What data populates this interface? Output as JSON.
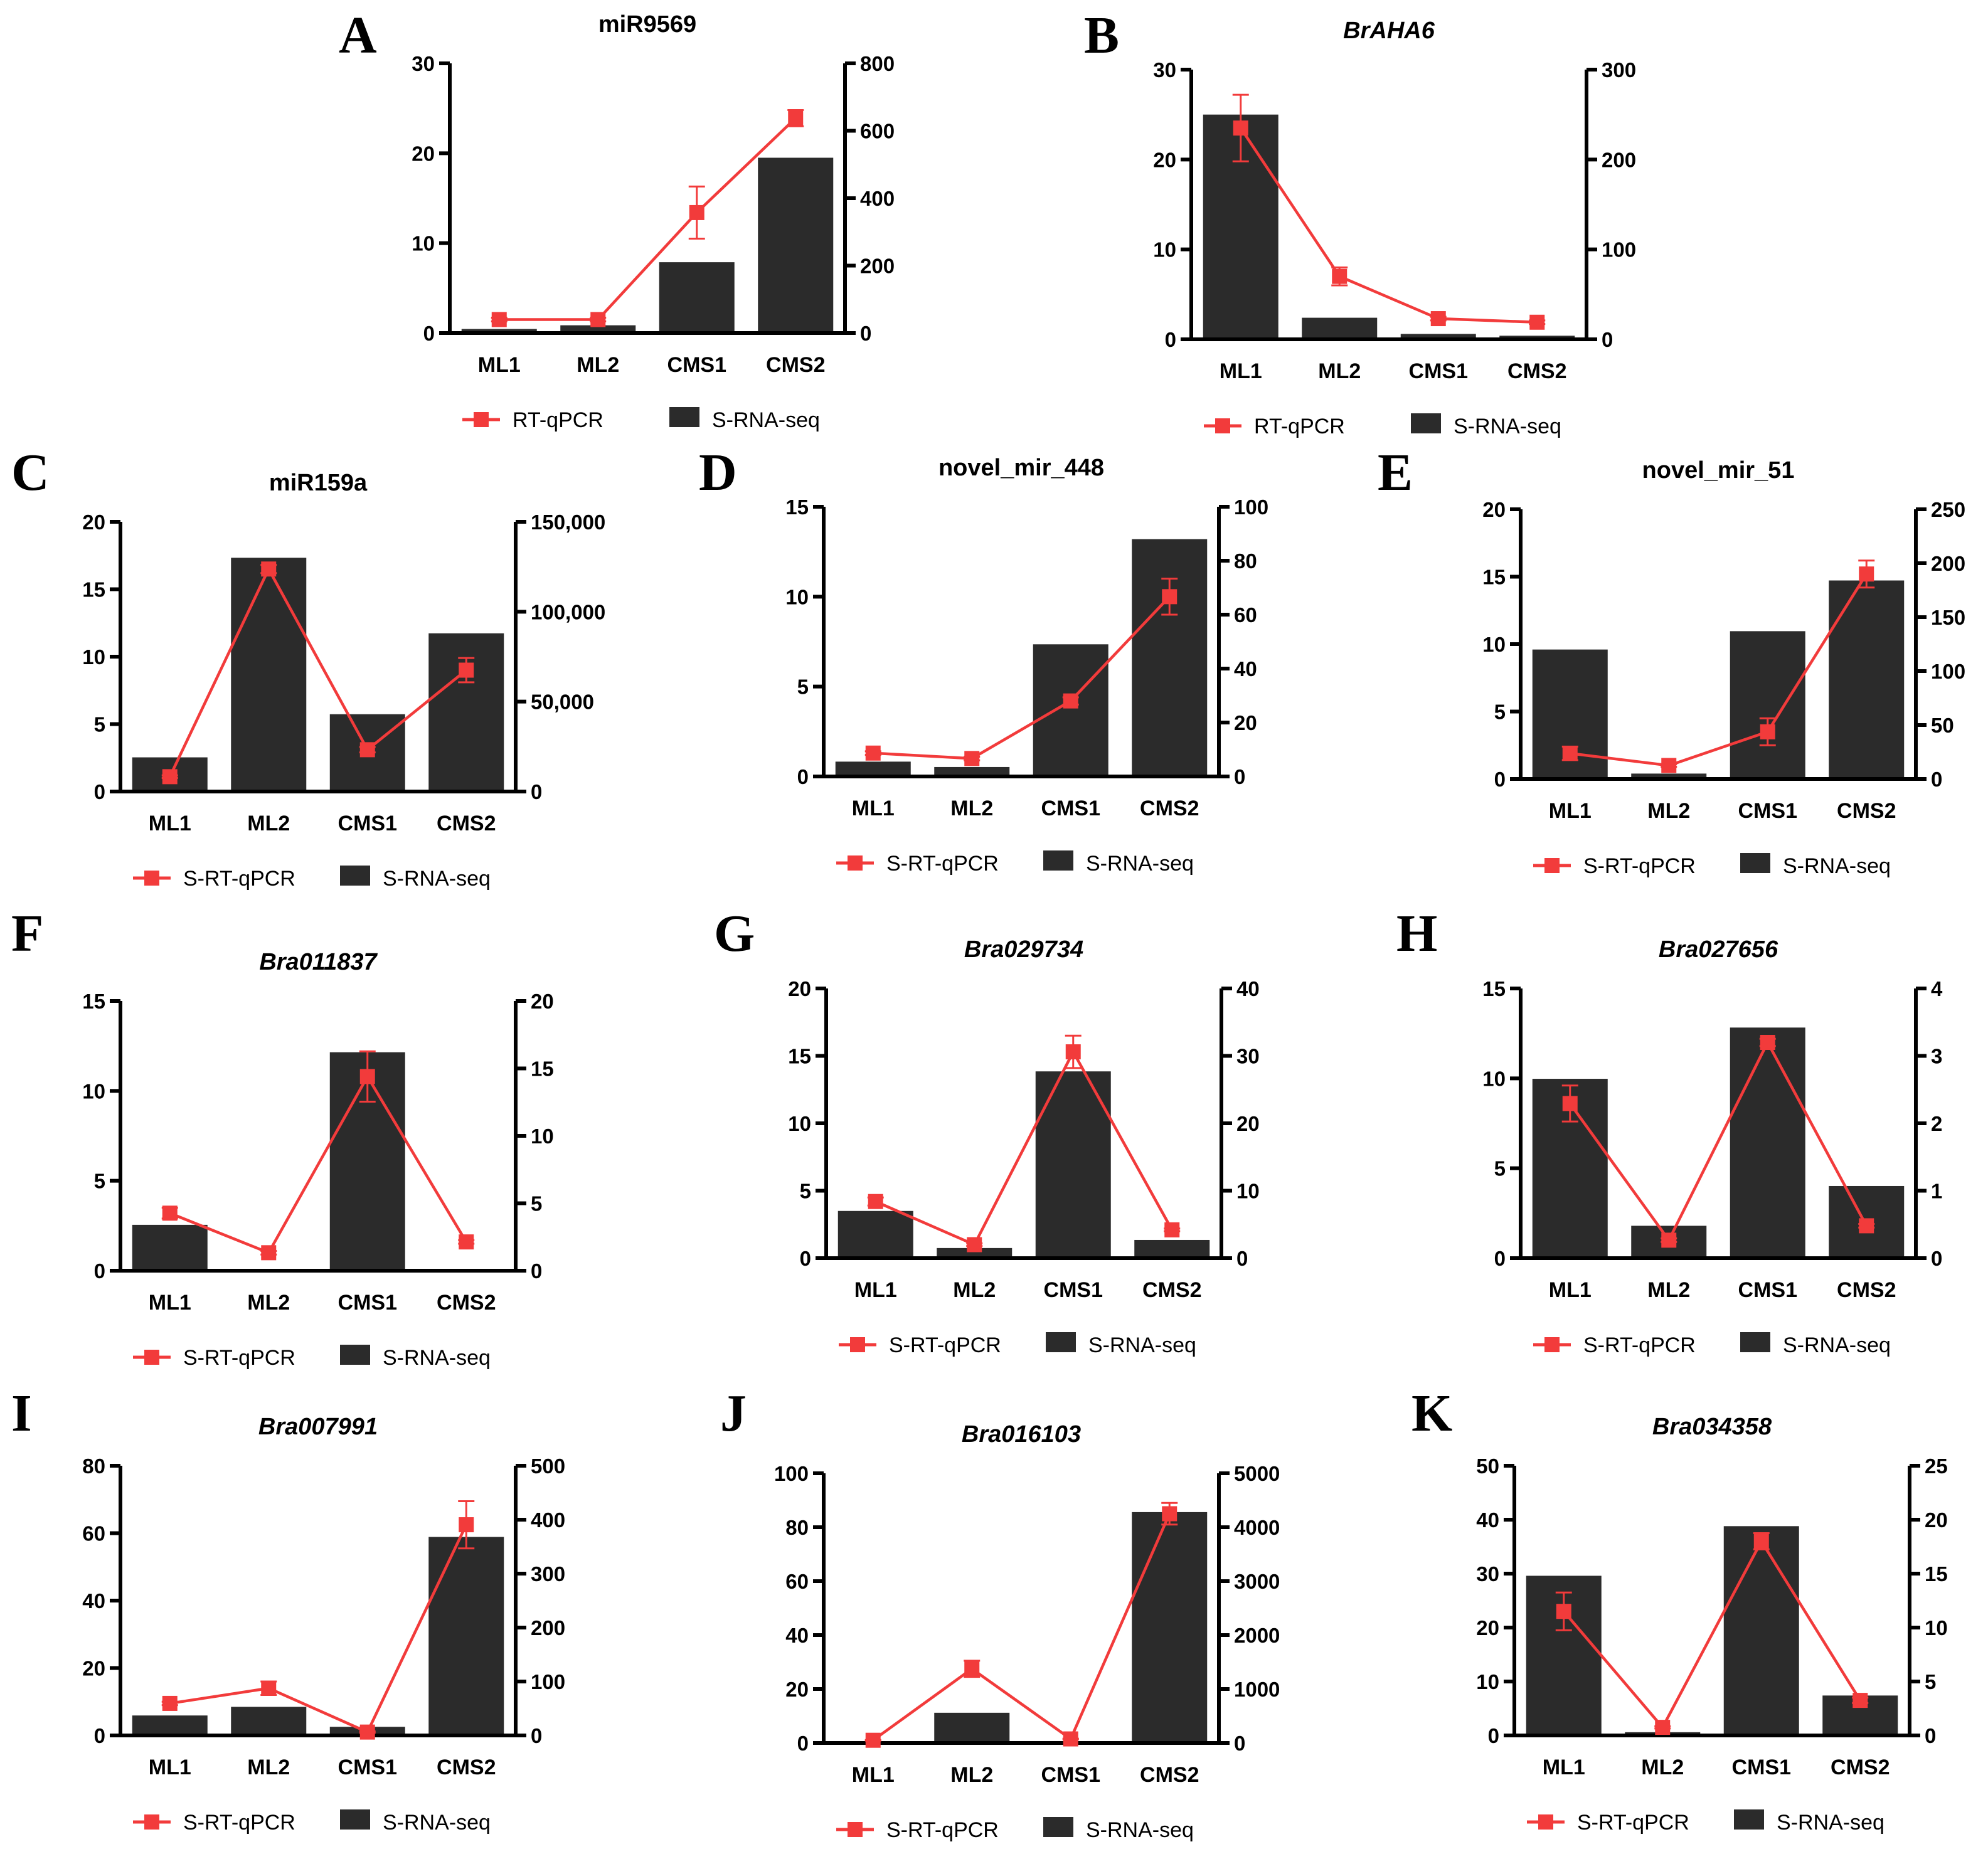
{
  "categories": [
    "ML1",
    "ML2",
    "CMS1",
    "CMS2"
  ],
  "colors": {
    "line": "#f23b3b",
    "bar": "#2b2b2b",
    "axis": "#000000"
  },
  "chart_data": [
    {
      "id": "A",
      "letter": "A",
      "type": "bar+line",
      "title": "miR9569",
      "title_italic": false,
      "legend": [
        "RT-qPCR",
        "S-RNA-seq"
      ],
      "left_ylim": [
        0,
        30
      ],
      "left_ticks": [
        0,
        10,
        20,
        30
      ],
      "right_ylim": [
        0,
        800
      ],
      "right_ticks": [
        0,
        200,
        400,
        600,
        800
      ],
      "bars": [
        12,
        23,
        210,
        520
      ],
      "line": [
        1.5,
        1.5,
        13.4,
        23.9
      ],
      "err": [
        0.2,
        0.2,
        2.9,
        0.9
      ]
    },
    {
      "id": "B",
      "letter": "B",
      "type": "bar+line",
      "title": "BrAHA6",
      "title_italic": true,
      "legend": [
        "RT-qPCR",
        "S-RNA-seq"
      ],
      "left_ylim": [
        0,
        30
      ],
      "left_ticks": [
        0,
        10,
        20,
        30
      ],
      "right_ylim": [
        0,
        300
      ],
      "right_ticks": [
        0,
        100,
        200,
        300
      ],
      "bars": [
        250,
        24,
        6,
        4
      ],
      "line": [
        23.5,
        7,
        2.3,
        1.9
      ],
      "err": [
        3.7,
        1.0,
        0.2,
        0.2
      ]
    },
    {
      "id": "C",
      "letter": "C",
      "type": "bar+line",
      "title": "miR159a",
      "title_italic": false,
      "legend": [
        "S-RT-qPCR",
        "S-RNA-seq"
      ],
      "left_ylim": [
        0,
        20
      ],
      "left_ticks": [
        0,
        5,
        10,
        15,
        20
      ],
      "right_ylim": [
        0,
        150000
      ],
      "right_ticks": [
        0,
        50000,
        100000,
        150000
      ],
      "bars": [
        19000,
        130000,
        43000,
        88000
      ],
      "line": [
        1.1,
        16.5,
        3.1,
        9.0
      ],
      "err": [
        0.1,
        0.3,
        0.2,
        0.9
      ]
    },
    {
      "id": "D",
      "letter": "D",
      "type": "bar+line",
      "title": "novel_mir_448",
      "title_italic": false,
      "legend": [
        "S-RT-qPCR",
        "S-RNA-seq"
      ],
      "left_ylim": [
        0,
        15
      ],
      "left_ticks": [
        0,
        5,
        10,
        15
      ],
      "right_ylim": [
        0,
        100
      ],
      "right_ticks": [
        0,
        20,
        40,
        60,
        80,
        100
      ],
      "bars": [
        5.5,
        3.5,
        49,
        88
      ],
      "line": [
        1.3,
        1.0,
        4.2,
        10.0
      ],
      "err": [
        0.1,
        0.1,
        0.2,
        1.0
      ]
    },
    {
      "id": "E",
      "letter": "E",
      "type": "bar+line",
      "title": "novel_mir_51",
      "title_italic": false,
      "legend": [
        "S-RT-qPCR",
        "S-RNA-seq"
      ],
      "left_ylim": [
        0,
        20
      ],
      "left_ticks": [
        0,
        5,
        10,
        15,
        20
      ],
      "right_ylim": [
        0,
        250
      ],
      "right_ticks": [
        0,
        50,
        100,
        150,
        200,
        250
      ],
      "bars": [
        120,
        5,
        137,
        184
      ],
      "line": [
        1.9,
        1.0,
        3.5,
        15.2
      ],
      "err": [
        0.5,
        0.1,
        1.0,
        1.0
      ]
    },
    {
      "id": "F",
      "letter": "F",
      "type": "bar+line",
      "title": "Bra011837",
      "title_italic": true,
      "legend": [
        "S-RT-qPCR",
        "S-RNA-seq"
      ],
      "left_ylim": [
        0,
        15
      ],
      "left_ticks": [
        0,
        5,
        10,
        15
      ],
      "right_ylim": [
        0,
        20
      ],
      "right_ticks": [
        0,
        5,
        10,
        15,
        20
      ],
      "bars": [
        3.4,
        0,
        16.2,
        0
      ],
      "line": [
        3.2,
        1.0,
        10.8,
        1.6
      ],
      "err": [
        0.3,
        0.1,
        1.4,
        0.1
      ]
    },
    {
      "id": "G",
      "letter": "G",
      "type": "bar+line",
      "title": "Bra029734",
      "title_italic": true,
      "legend": [
        "S-RT-qPCR",
        "S-RNA-seq"
      ],
      "left_ylim": [
        0,
        20
      ],
      "left_ticks": [
        0,
        5,
        10,
        15,
        20
      ],
      "right_ylim": [
        0,
        40
      ],
      "right_ticks": [
        0,
        10,
        20,
        30,
        40
      ],
      "bars": [
        7,
        1.5,
        27.7,
        2.7
      ],
      "line": [
        4.2,
        1.0,
        15.3,
        2.1
      ],
      "err": [
        0.3,
        0.1,
        1.2,
        0.1
      ]
    },
    {
      "id": "H",
      "letter": "H",
      "type": "bar+line",
      "title": "Bra027656",
      "title_italic": true,
      "legend": [
        "S-RT-qPCR",
        "S-RNA-seq"
      ],
      "left_ylim": [
        0,
        15
      ],
      "left_ticks": [
        0,
        5,
        10,
        15
      ],
      "right_ylim": [
        0,
        4
      ],
      "right_ticks": [
        0,
        1,
        2,
        3,
        4
      ],
      "bars": [
        2.66,
        0.48,
        3.42,
        1.07
      ],
      "line": [
        8.6,
        1.0,
        12.0,
        1.8
      ],
      "err": [
        1.0,
        0.1,
        0.2,
        0.1
      ]
    },
    {
      "id": "I",
      "letter": "I",
      "type": "bar+line",
      "title": "Bra007991",
      "title_italic": true,
      "legend": [
        "S-RT-qPCR",
        "S-RNA-seq"
      ],
      "left_ylim": [
        0,
        80
      ],
      "left_ticks": [
        0,
        20,
        40,
        60,
        80
      ],
      "right_ylim": [
        0,
        500
      ],
      "right_ticks": [
        0,
        100,
        200,
        300,
        400,
        500
      ],
      "bars": [
        37,
        53,
        16,
        368
      ],
      "line": [
        9.5,
        14,
        1.0,
        62.5
      ],
      "err": [
        0.5,
        2.0,
        0.2,
        7.0
      ]
    },
    {
      "id": "J",
      "letter": "J",
      "type": "bar+line",
      "title": "Bra016103",
      "title_italic": true,
      "legend": [
        "S-RT-qPCR",
        "S-RNA-seq"
      ],
      "left_ylim": [
        0,
        100
      ],
      "left_ticks": [
        0,
        20,
        40,
        60,
        80,
        100
      ],
      "right_ylim": [
        0,
        5000
      ],
      "right_ticks": [
        0,
        1000,
        2000,
        3000,
        4000,
        5000
      ],
      "bars": [
        0,
        560,
        0,
        4280
      ],
      "line": [
        1.0,
        27.5,
        1.5,
        85
      ],
      "err": [
        0.1,
        3.0,
        0.1,
        4.0
      ]
    },
    {
      "id": "K",
      "letter": "K",
      "type": "bar+line",
      "title": "Bra034358",
      "title_italic": true,
      "legend": [
        "S-RT-qPCR",
        "S-RNA-seq"
      ],
      "left_ylim": [
        0,
        50
      ],
      "left_ticks": [
        0,
        10,
        20,
        30,
        40,
        50
      ],
      "right_ylim": [
        0,
        25
      ],
      "right_ticks": [
        0,
        5,
        10,
        15,
        20,
        25
      ],
      "bars": [
        14.8,
        0.3,
        19.4,
        3.7
      ],
      "line": [
        23,
        1.5,
        36,
        6.5
      ],
      "err": [
        3.5,
        0.2,
        1.5,
        0.5
      ]
    }
  ]
}
